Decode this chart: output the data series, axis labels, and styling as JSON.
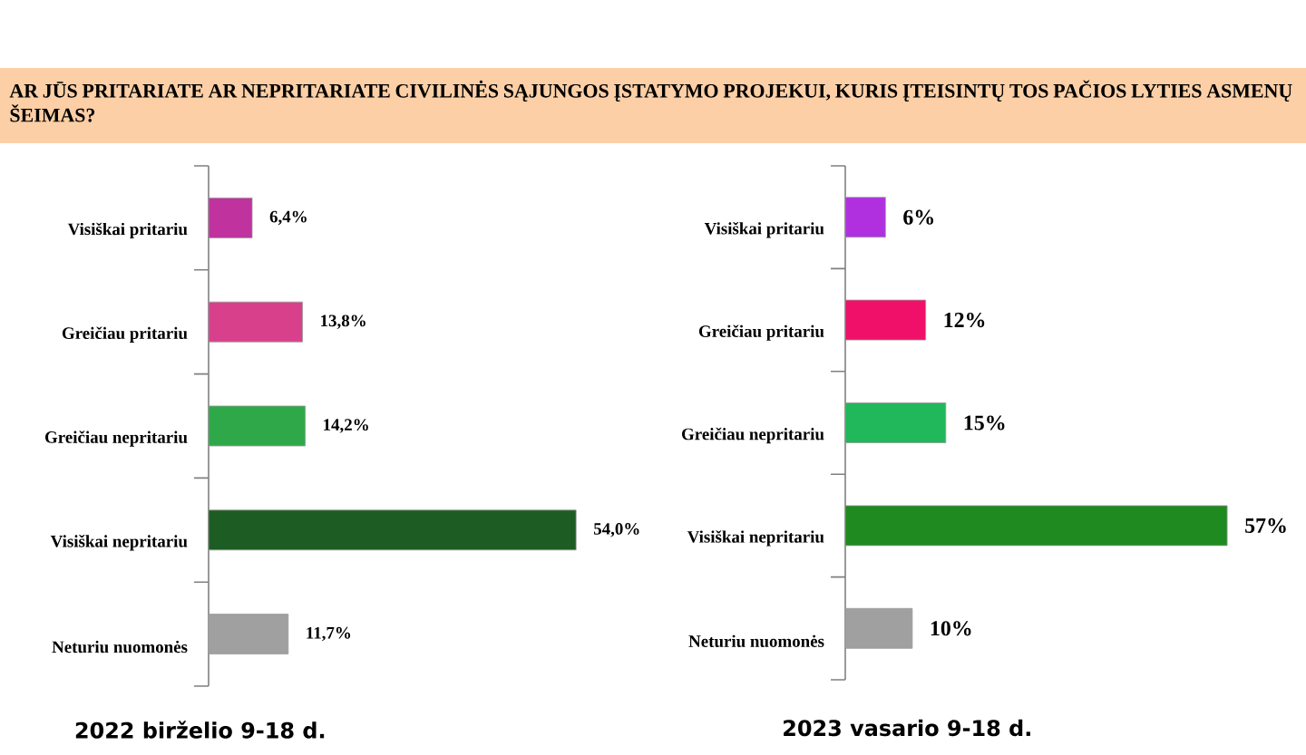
{
  "chart_data": [
    {
      "type": "bar",
      "orientation": "horizontal",
      "title": "AR JŪS PRITARIATE AR NEPRITARIATE CIVILINĖS SĄJUNGOS ĮSTATYMO PROJEKUI, KURIS ĮTEISINTŲ TOS PAČIOS LYTIES ASMENŲ ŠEIMAS?",
      "xlabel": "2022 birželio 9-18 d.",
      "categories": [
        "Visiškai pritariu",
        "Greičiau pritariu",
        "Greičiau nepritariu",
        "Visiškai nepritariu",
        "Neturiu nuomonės"
      ],
      "values": [
        6.4,
        13.8,
        14.2,
        54.0,
        11.7
      ],
      "value_labels": [
        "6,4%",
        "13,8%",
        "14,2%",
        "54,0%",
        "11,7%"
      ],
      "colors": [
        "#c0329e",
        "#d8408c",
        "#2fa84a",
        "#1d5c22",
        "#a0a0a0"
      ]
    },
    {
      "type": "bar",
      "orientation": "horizontal",
      "xlabel": "2023 vasario 9-18 d.",
      "categories": [
        "Visiškai pritariu",
        "Greičiau pritariu",
        "Greičiau nepritariu",
        "Visiškai nepritariu",
        "Neturiu nuomonės"
      ],
      "values": [
        6,
        12,
        15,
        57,
        10
      ],
      "value_labels": [
        "6%",
        "12%",
        "15%",
        "57%",
        "10%"
      ],
      "colors": [
        "#b030e0",
        "#f0106a",
        "#20b85a",
        "#1f8a1f",
        "#a0a0a0"
      ]
    }
  ]
}
